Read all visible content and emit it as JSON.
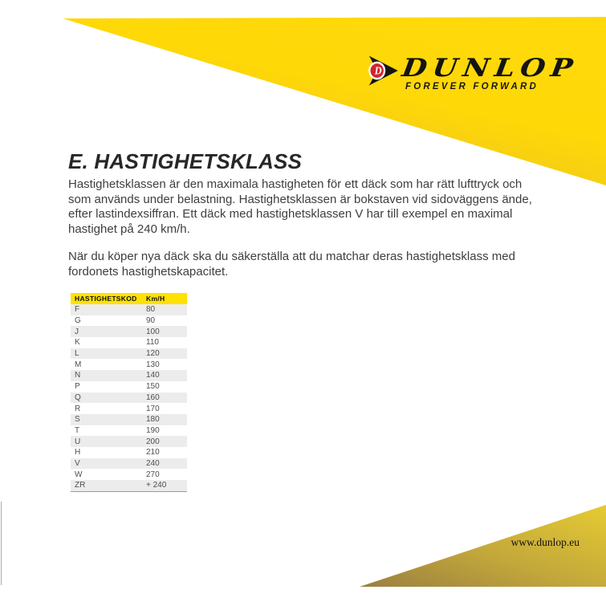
{
  "brand": {
    "name": "DUNLOP",
    "tagline": "FOREVER FORWARD",
    "emblem_letter": "D",
    "colors": {
      "banner_yellow": "#FFD808",
      "banner_gold": "#CDAB31",
      "footer_gold_dark": "#9A7F41",
      "footer_gold_light": "#E6CB33",
      "table_header_yellow": "#FFE103",
      "emblem_red": "#D2232A",
      "black": "#141414"
    }
  },
  "main": {
    "title": "E. HASTIGHETSKLASS",
    "paragraph1_lines": [
      "Hastighetsklassen är den maximala hastigheten för ett däck som har rätt lufttryck och",
      "som används under belastning. Hastighetsklassen är bokstaven vid sidoväggens ände,",
      "efter lastindexsiffran. Ett däck med hastighetsklassen V har till exempel en maximal",
      "hastighet på 240 km/h."
    ],
    "paragraph2_lines": [
      "När du köper nya däck ska du säkerställa att du matchar deras hastighetsklass med",
      "fordonets hastighetskapacitet."
    ]
  },
  "speed_table": {
    "headers": [
      "HASTIGHETSKOD",
      "Km/H"
    ],
    "rows": [
      {
        "code": "F",
        "kmh": "80"
      },
      {
        "code": "G",
        "kmh": "90"
      },
      {
        "code": "J",
        "kmh": "100"
      },
      {
        "code": "K",
        "kmh": "110"
      },
      {
        "code": "L",
        "kmh": "120"
      },
      {
        "code": "M",
        "kmh": "130"
      },
      {
        "code": "N",
        "kmh": "140"
      },
      {
        "code": "P",
        "kmh": "150"
      },
      {
        "code": "Q",
        "kmh": "160"
      },
      {
        "code": "R",
        "kmh": "170"
      },
      {
        "code": "S",
        "kmh": "180"
      },
      {
        "code": "T",
        "kmh": "190"
      },
      {
        "code": "U",
        "kmh": "200"
      },
      {
        "code": "H",
        "kmh": "210"
      },
      {
        "code": "V",
        "kmh": "240"
      },
      {
        "code": "W",
        "kmh": "270"
      },
      {
        "code": "ZR",
        "kmh": "+ 240"
      }
    ]
  },
  "footer": {
    "website": "www.dunlop.eu"
  }
}
